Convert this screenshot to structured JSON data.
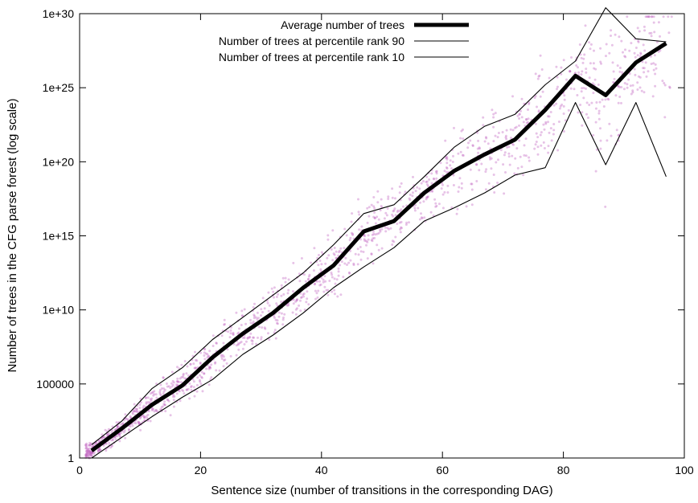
{
  "chart_data": {
    "type": "line",
    "xlabel": "Sentence size (number of transitions in the corresponding DAG)",
    "ylabel": "Number of trees in the CFG parse forest (log scale)",
    "xlim": [
      0,
      100
    ],
    "ylim_log10": [
      0,
      30
    ],
    "y_scale": "log",
    "x_ticks": [
      0,
      20,
      40,
      60,
      80,
      100
    ],
    "x_tick_labels": [
      "0",
      "20",
      "40",
      "60",
      "80",
      "100"
    ],
    "y_ticks_log10": [
      0,
      5,
      10,
      15,
      20,
      25,
      30
    ],
    "y_tick_labels": [
      "1",
      "100000",
      "1e+10",
      "1e+15",
      "1e+20",
      "1e+25",
      "1e+30"
    ],
    "legend_position": "top-right",
    "grid": false,
    "series": [
      {
        "name": "Average number of trees",
        "color": "#000000",
        "style": "thick",
        "x": [
          2,
          7,
          12,
          17,
          22,
          27,
          32,
          37,
          42,
          47,
          52,
          57,
          62,
          67,
          72,
          77,
          82,
          87,
          92,
          97
        ],
        "y_log10": [
          0.5,
          2.0,
          3.6,
          4.9,
          6.8,
          8.4,
          9.8,
          11.5,
          13.0,
          15.3,
          16.0,
          17.9,
          19.4,
          20.5,
          21.5,
          23.5,
          25.8,
          24.5,
          26.7,
          28.0
        ]
      },
      {
        "name": "Number of trees at percentile rank 90",
        "color": "#000000",
        "style": "thin",
        "x": [
          2,
          7,
          12,
          17,
          22,
          27,
          32,
          37,
          42,
          47,
          52,
          57,
          62,
          67,
          72,
          77,
          82,
          87,
          92,
          97
        ],
        "y_log10": [
          0.9,
          2.5,
          4.7,
          6.1,
          8.0,
          9.5,
          11.0,
          12.5,
          14.4,
          16.5,
          17.1,
          19.0,
          21.0,
          22.4,
          23.2,
          25.2,
          26.8,
          30.4,
          28.3,
          28.1
        ]
      },
      {
        "name": "Number of trees at percentile rank 10",
        "color": "#000000",
        "style": "thin",
        "x": [
          2,
          7,
          12,
          17,
          22,
          27,
          32,
          37,
          42,
          47,
          52,
          57,
          62,
          67,
          72,
          77,
          82,
          87,
          92,
          97
        ],
        "y_log10": [
          0.0,
          1.4,
          2.8,
          4.1,
          5.3,
          7.0,
          8.3,
          9.8,
          11.5,
          12.9,
          14.2,
          16.0,
          16.9,
          17.9,
          19.1,
          19.6,
          24.0,
          19.8,
          24.0,
          19.0
        ]
      }
    ],
    "scatter_color": "#c060c0",
    "scatter_style": "small translucent dots scattered around the average curve"
  }
}
